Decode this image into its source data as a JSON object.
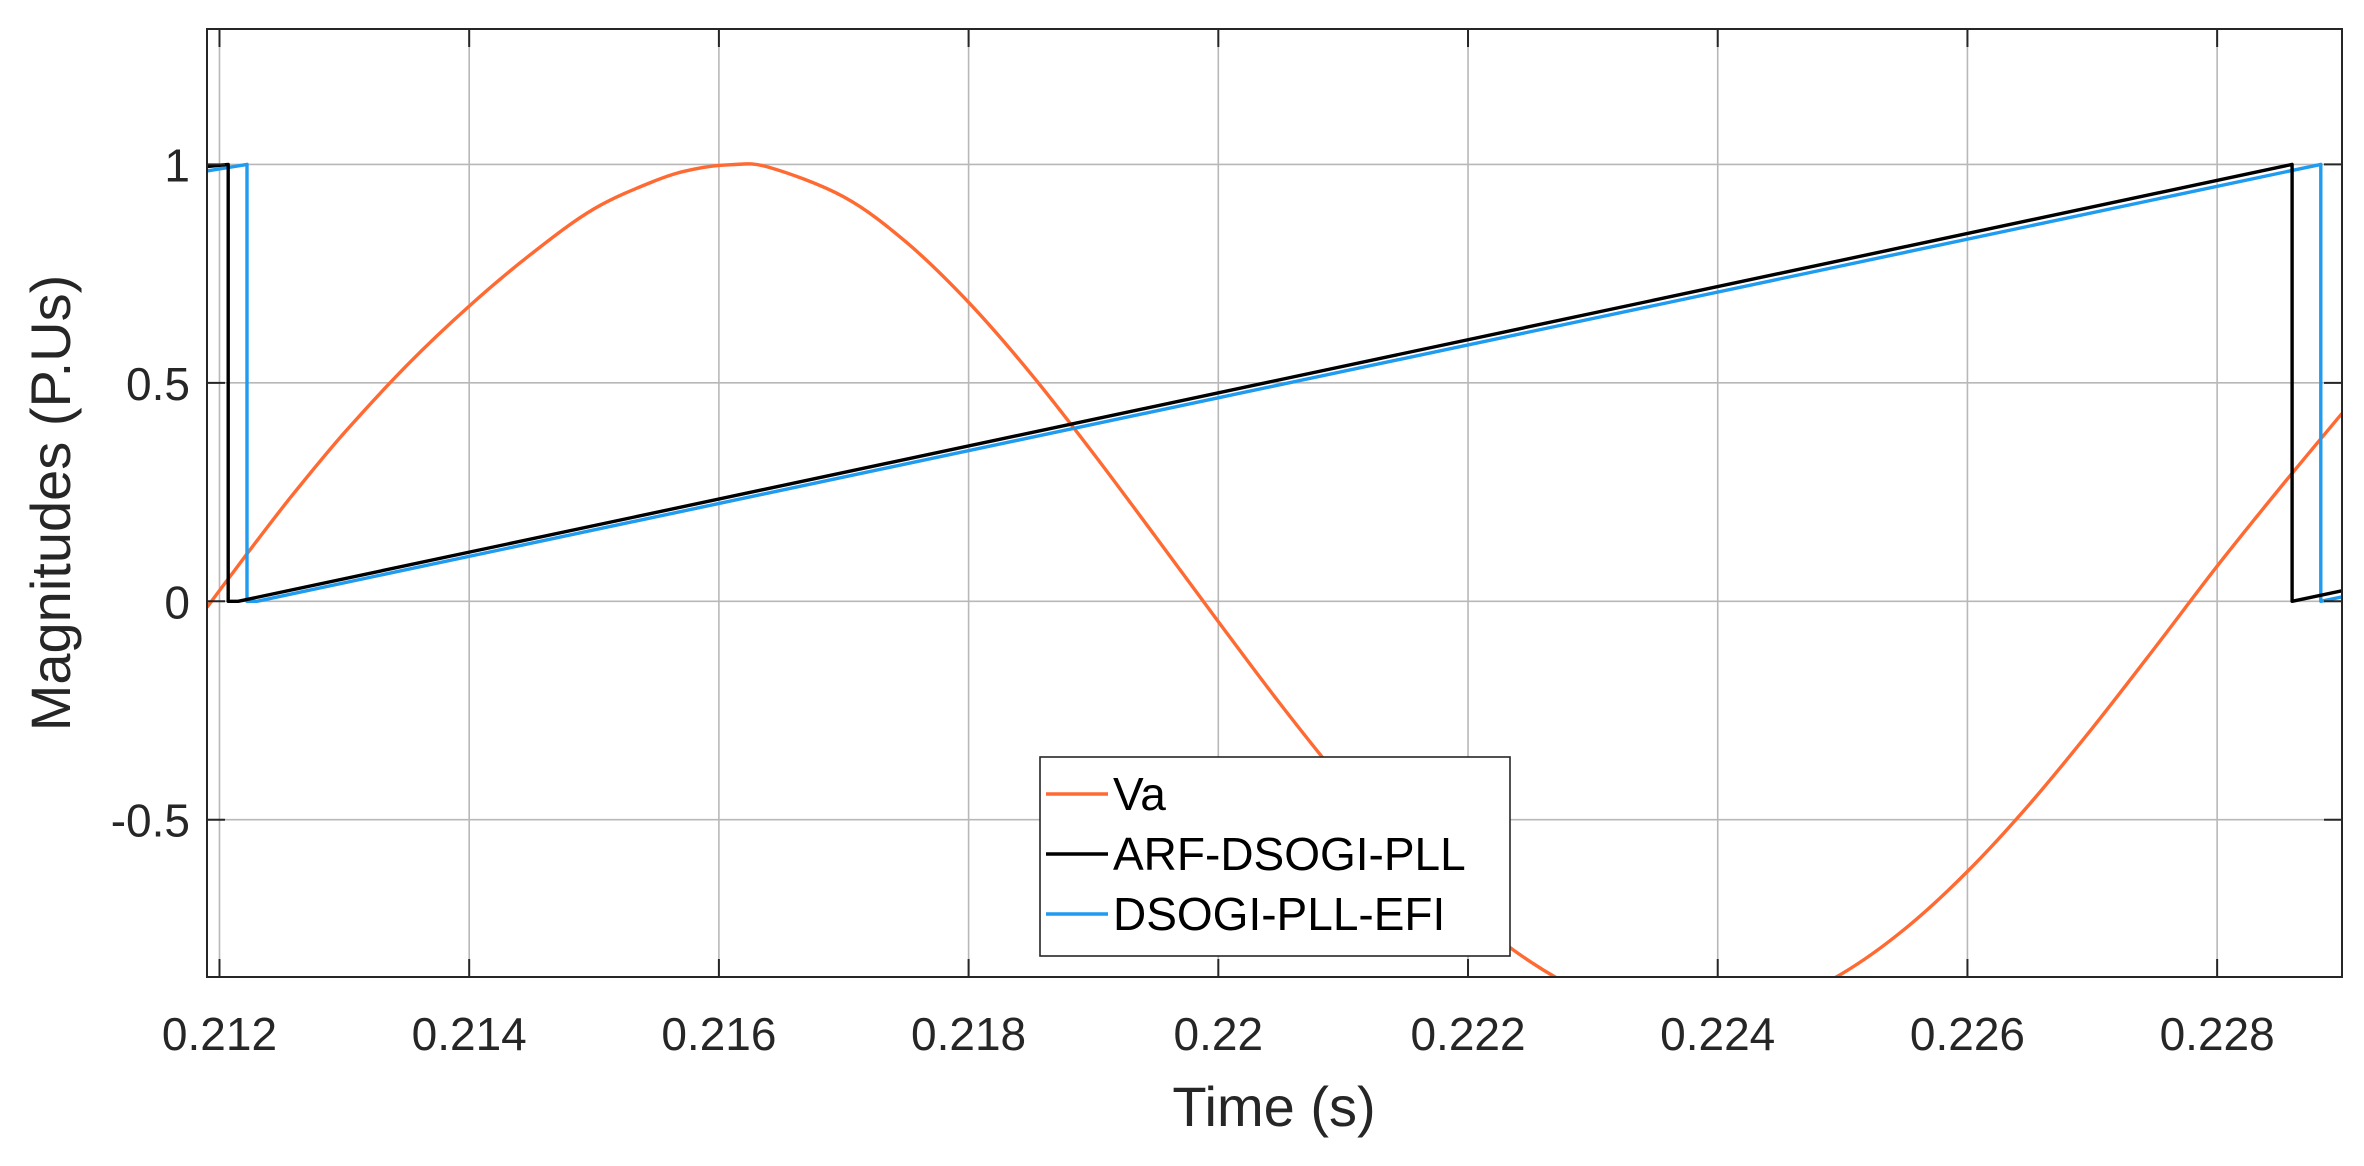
{
  "chart_data": {
    "type": "line",
    "title": "",
    "xlabel": "Time (s)",
    "ylabel": "Magnitudes (P.Us)",
    "xlim": [
      0.2119,
      0.229
    ],
    "ylim": [
      -0.86,
      1.31
    ],
    "xticks": [
      0.212,
      0.214,
      0.216,
      0.218,
      0.22,
      0.222,
      0.224,
      0.226,
      0.228
    ],
    "xtick_labels": [
      "0.212",
      "0.214",
      "0.216",
      "0.218",
      "0.22",
      "0.222",
      "0.224",
      "0.226",
      "0.228"
    ],
    "yticks": [
      1,
      0.5,
      0,
      -0.5
    ],
    "ytick_labels": [
      "1",
      "0.5",
      "0",
      "-0.5"
    ],
    "grid": true,
    "legend_position": "bottom-center",
    "series": [
      {
        "name": "Va",
        "color": "#ff6a33",
        "x": [
          0.2119,
          0.2121,
          0.2123,
          0.2126,
          0.213,
          0.2135,
          0.214,
          0.2145,
          0.215,
          0.2155,
          0.2158,
          0.2161,
          0.2164,
          0.217,
          0.2175,
          0.218,
          0.2185,
          0.219,
          0.2195,
          0.22,
          0.2205,
          0.221,
          0.2215,
          0.222,
          0.2225,
          0.223,
          0.2235,
          0.224,
          0.2245,
          0.225,
          0.2255,
          0.226,
          0.2265,
          0.227,
          0.2275,
          0.228,
          0.2285,
          0.229
        ],
        "values": [
          -0.0137,
          0.0628,
          0.1385,
          0.2487,
          0.3856,
          0.5399,
          0.6758,
          0.7956,
          0.8983,
          0.9638,
          0.9891,
          0.9993,
          0.9936,
          0.9257,
          0.8221,
          0.6844,
          0.5206,
          0.338,
          0.147,
          -0.0465,
          -0.2363,
          -0.415,
          -0.5763,
          -0.7149,
          -0.8253,
          -0.9032,
          -0.9457,
          -0.9512,
          -0.9195,
          -0.8515,
          -0.7497,
          -0.6186,
          -0.4634,
          -0.2904,
          -0.1069,
          0.0803,
          0.2583,
          0.4301
        ]
      },
      {
        "name": "ARF-DSOGI-PLL",
        "color": "#000000",
        "x": [
          0.2119,
          0.21207,
          0.21207,
          0.21215,
          0.2286,
          0.2286,
          0.229
        ],
        "values": [
          0.995,
          1.0,
          0.0,
          0.0,
          1.0,
          0.0,
          0.024
        ]
      },
      {
        "name": "DSOGI-PLL-EFI",
        "color": "#1f9bf0",
        "x": [
          0.2119,
          0.21222,
          0.21222,
          0.2123,
          0.22883,
          0.22883,
          0.229
        ],
        "values": [
          0.985,
          1.0,
          0.0,
          0.0,
          1.0,
          0.0,
          0.01
        ]
      }
    ]
  }
}
